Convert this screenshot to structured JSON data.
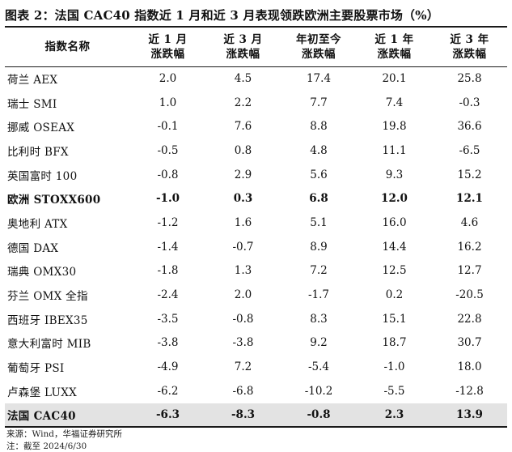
{
  "title": "图表 2：法国 CAC40 指数近 1 月和近 3 月表现领跌欧洲主要股票市场（%）",
  "headers": [
    [
      "指数名称"
    ],
    [
      "近 1 月",
      "涨跌幅"
    ],
    [
      "近 3 月",
      "涨跌幅"
    ],
    [
      "年初至今",
      "涨跌幅"
    ],
    [
      "近 1 年",
      "涨跌幅"
    ],
    [
      "近 3 年",
      "涨跌幅"
    ]
  ],
  "rows": [
    {
      "name": "荷兰 AEX",
      "values": [
        "2.0",
        "4.5",
        "17.4",
        "20.1",
        "25.8"
      ],
      "bold": false,
      "shaded": false
    },
    {
      "name": "瑞士 SMI",
      "values": [
        "1.0",
        "2.2",
        "7.7",
        "7.4",
        "-0.3"
      ],
      "bold": false,
      "shaded": false
    },
    {
      "name": "挪威 OSEAX",
      "values": [
        "-0.1",
        "7.6",
        "8.8",
        "19.8",
        "36.6"
      ],
      "bold": false,
      "shaded": false
    },
    {
      "name": "比利时 BFX",
      "values": [
        "-0.5",
        "0.8",
        "4.8",
        "11.1",
        "-6.5"
      ],
      "bold": false,
      "shaded": false
    },
    {
      "name": "英国富时 100",
      "values": [
        "-0.8",
        "2.9",
        "5.6",
        "9.3",
        "15.2"
      ],
      "bold": false,
      "shaded": false
    },
    {
      "name": "欧洲 STOXX600",
      "values": [
        "-1.0",
        "0.3",
        "6.8",
        "12.0",
        "12.1"
      ],
      "bold": true,
      "shaded": false
    },
    {
      "name": "奥地利 ATX",
      "values": [
        "-1.2",
        "1.6",
        "5.1",
        "16.0",
        "4.6"
      ],
      "bold": false,
      "shaded": false
    },
    {
      "name": "德国 DAX",
      "values": [
        "-1.4",
        "-0.7",
        "8.9",
        "14.4",
        "16.2"
      ],
      "bold": false,
      "shaded": false
    },
    {
      "name": "瑞典 OMX30",
      "values": [
        "-1.8",
        "1.3",
        "7.2",
        "12.5",
        "12.7"
      ],
      "bold": false,
      "shaded": false
    },
    {
      "name": "芬兰 OMX 全指",
      "values": [
        "-2.4",
        "2.0",
        "-1.7",
        "0.2",
        "-20.5"
      ],
      "bold": false,
      "shaded": false
    },
    {
      "name": "西班牙 IBEX35",
      "values": [
        "-3.5",
        "-0.8",
        "8.3",
        "15.1",
        "22.8"
      ],
      "bold": false,
      "shaded": false
    },
    {
      "name": "意大利富时 MIB",
      "values": [
        "-3.8",
        "-3.8",
        "9.2",
        "18.7",
        "30.7"
      ],
      "bold": false,
      "shaded": false
    },
    {
      "name": "葡萄牙 PSI",
      "values": [
        "-4.9",
        "7.2",
        "-5.4",
        "-1.0",
        "18.0"
      ],
      "bold": false,
      "shaded": false
    },
    {
      "name": "卢森堡 LUXX",
      "values": [
        "-6.2",
        "-6.8",
        "-10.2",
        "-5.5",
        "-12.8"
      ],
      "bold": false,
      "shaded": false
    },
    {
      "name": "法国 CAC40",
      "values": [
        "-6.3",
        "-8.3",
        "-0.8",
        "2.3",
        "13.9"
      ],
      "bold": true,
      "shaded": true
    }
  ],
  "source": "来源：Wind，华福证券研究所",
  "note": "注：截至 2024/6/30"
}
